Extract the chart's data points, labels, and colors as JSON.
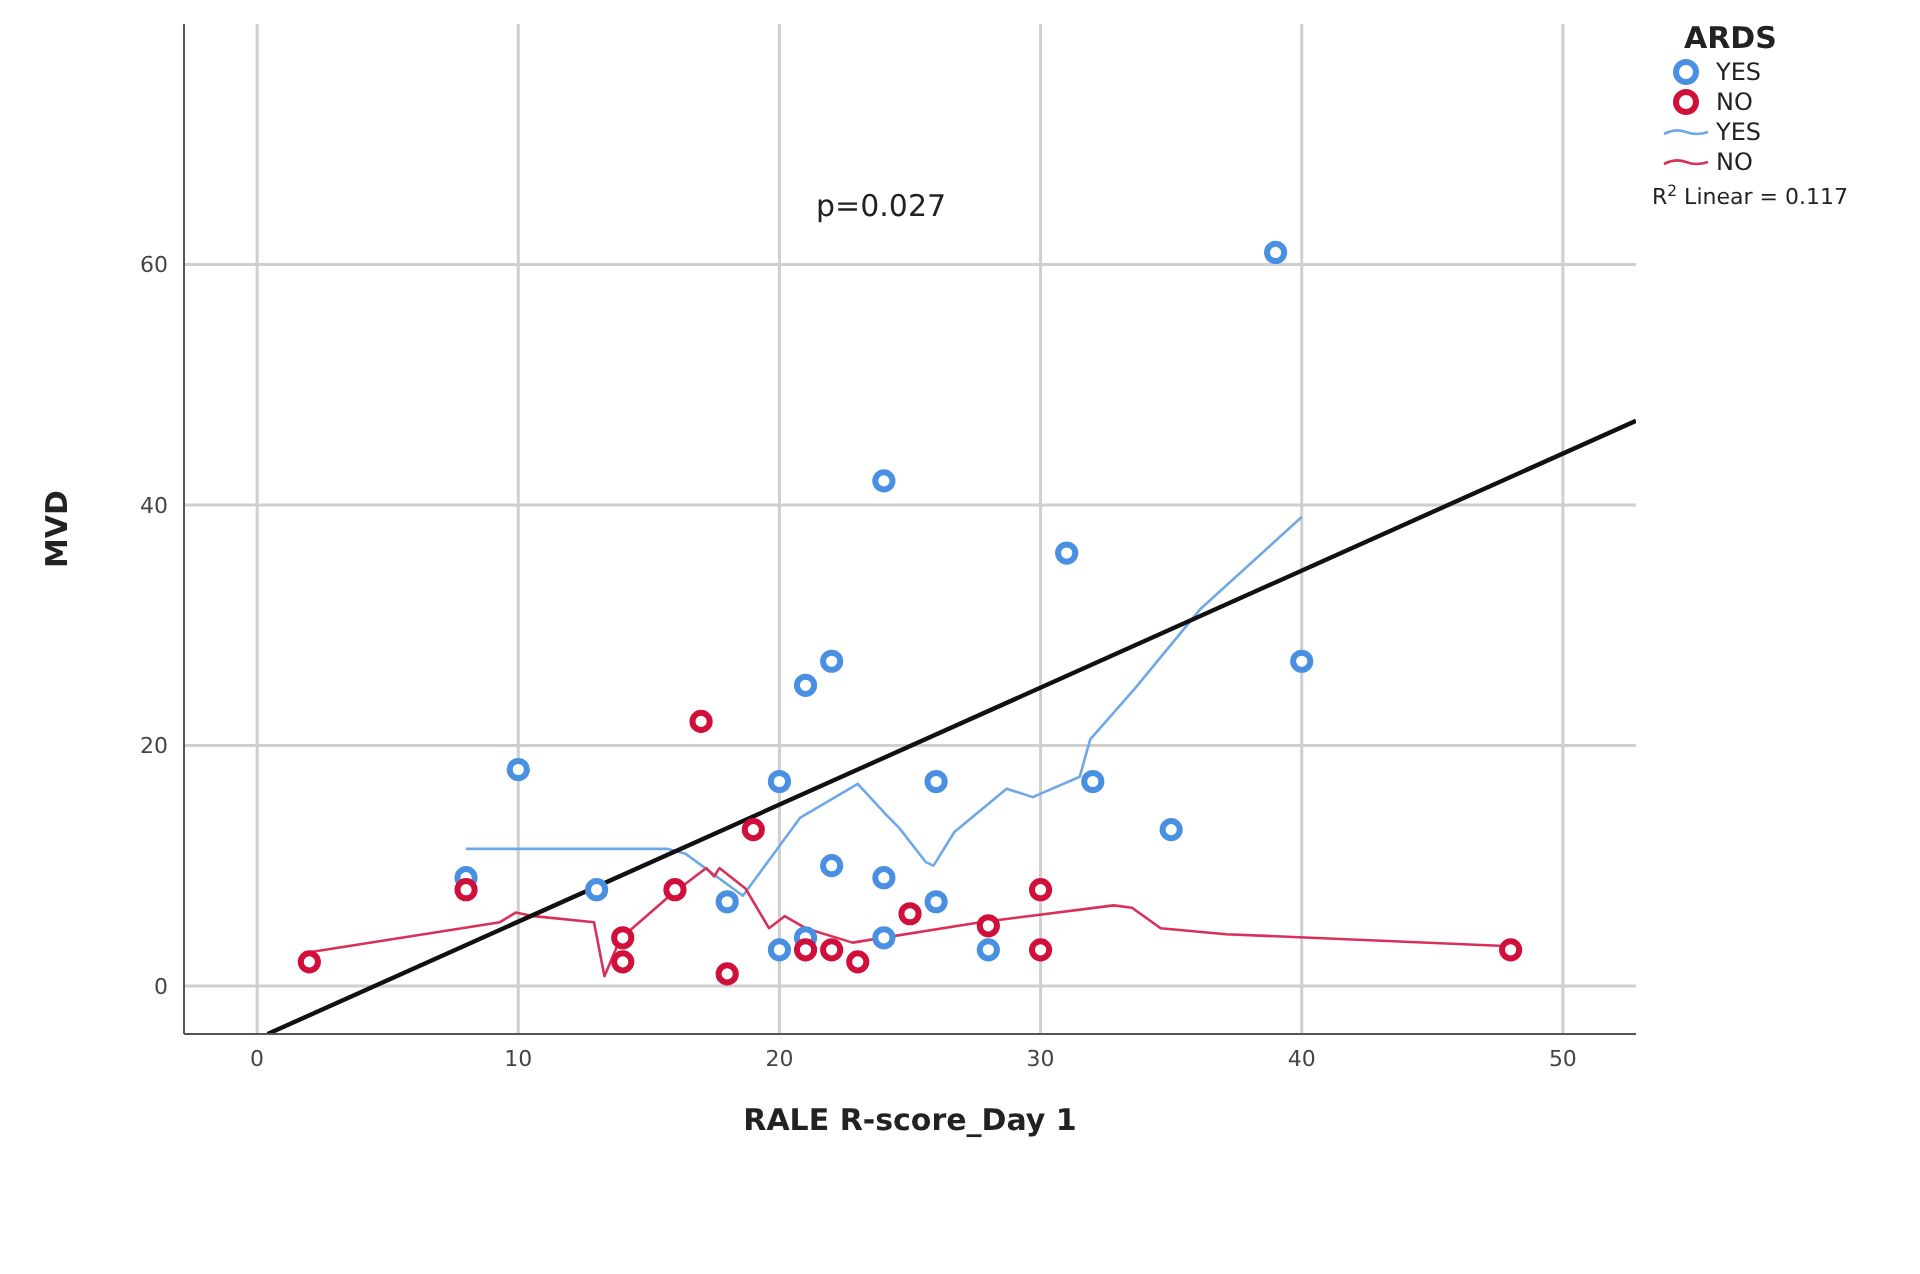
{
  "chart_data": {
    "type": "scatter",
    "xlabel": "RALE R-score_Day 1",
    "ylabel": "MVD",
    "legend_title": "ARDS",
    "legend": "top right",
    "grid": true,
    "marker": "circle",
    "line_style": "solid",
    "xlim": [
      -2.8,
      52.8
    ],
    "ylim": [
      -4,
      80
    ],
    "xticks": [
      0,
      10,
      20,
      30,
      40,
      50
    ],
    "yticks": [
      0,
      20,
      40,
      60
    ],
    "annotations": [
      "p=0.027",
      "R$^{2}$ Linear = 0.117"
    ],
    "series": [
      {
        "name": "YES",
        "color": "#4a90e2",
        "x": [
          8,
          10,
          13,
          18,
          20,
          20,
          21,
          21,
          22,
          22,
          24,
          24,
          24,
          26,
          26,
          28,
          31,
          32,
          35,
          39,
          40
        ],
        "values": [
          9,
          18,
          8,
          7,
          17,
          3,
          25,
          4,
          27,
          10,
          42,
          9,
          4,
          17,
          7,
          3,
          36,
          17,
          13,
          61,
          27
        ]
      },
      {
        "name": "NO",
        "color": "#d0103a",
        "x": [
          2,
          8,
          14,
          14,
          16,
          17,
          18,
          19,
          21,
          22,
          23,
          25,
          28,
          30,
          30,
          48
        ],
        "values": [
          2,
          8,
          4,
          2,
          8,
          22,
          1,
          13,
          3,
          3,
          2,
          6,
          5,
          8,
          3,
          3
        ]
      },
      {
        "name": "YES",
        "type": "line",
        "marker": "none",
        "color": "#6fa8e6",
        "x": [
          8,
          15.7,
          16.4,
          18.6,
          20.8,
          23,
          24.1,
          24.6,
          25.6,
          25.9,
          26.7,
          28.7,
          29.7,
          31.5,
          31.9,
          33.6,
          36.1,
          40
        ],
        "values": [
          11.4,
          11.4,
          11,
          7.5,
          14,
          16.8,
          14.2,
          13.1,
          10.3,
          10,
          12.8,
          16.4,
          15.7,
          17.4,
          20.5,
          24.7,
          31.3,
          39
        ]
      },
      {
        "name": "NO",
        "type": "line",
        "marker": "none",
        "color": "#d8305a",
        "x": [
          2,
          9.3,
          9.9,
          10.6,
          12.9,
          13.3,
          13.9,
          15.8,
          17.2,
          17.5,
          17.7,
          18.7,
          19.6,
          20.2,
          21,
          22.8,
          27.7,
          32.8,
          33.5,
          34.6,
          37.1,
          48
        ],
        "values": [
          2.8,
          5.3,
          6.1,
          5.8,
          5.3,
          0.8,
          3.9,
          7.5,
          9.8,
          9.1,
          9.8,
          8.1,
          4.8,
          5.8,
          4.8,
          3.6,
          5.3,
          6.7,
          6.5,
          4.8,
          4.3,
          3.3
        ]
      },
      {
        "type": "line",
        "marker": "none",
        "color": "#111111",
        "x": [
          0.4,
          52.8
        ],
        "values": [
          -4,
          47
        ]
      }
    ]
  }
}
